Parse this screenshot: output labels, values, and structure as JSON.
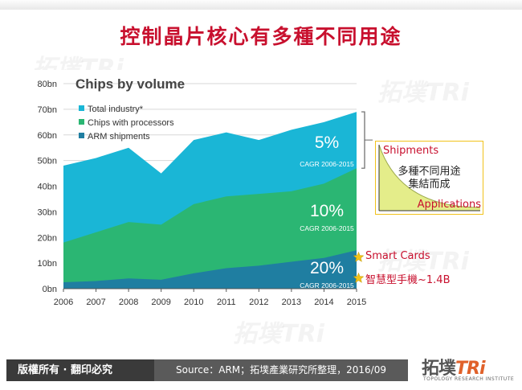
{
  "title": "控制晶片核心有多種不同用途",
  "chart_data": {
    "type": "area",
    "title": "Chips by volume",
    "x": [
      "2006",
      "2007",
      "2008",
      "2009",
      "2010",
      "2011",
      "2012",
      "2013",
      "2014",
      "2015"
    ],
    "ylim": [
      0,
      80
    ],
    "yticks": [
      "0bn",
      "10bn",
      "20bn",
      "30bn",
      "40bn",
      "50bn",
      "60bn",
      "70bn",
      "80bn"
    ],
    "grid": true,
    "legend_position": "top-left",
    "series": [
      {
        "name": "Total industry*",
        "color": "#1ab6d6",
        "values": [
          48,
          51,
          55,
          45,
          58,
          61,
          58,
          62,
          65,
          69
        ]
      },
      {
        "name": "Chips with processors",
        "color": "#2bb673",
        "values": [
          18,
          22,
          26,
          25,
          33,
          36,
          37,
          38,
          41,
          47
        ]
      },
      {
        "name": "ARM shipments",
        "color": "#1f7ea1",
        "values": [
          2.5,
          3,
          4,
          3.5,
          6,
          8,
          9,
          10.5,
          12,
          15
        ]
      }
    ],
    "annotations": [
      {
        "big": "5%",
        "small": "CAGR 2006-2015"
      },
      {
        "big": "10%",
        "small": "CAGR 2006-2015"
      },
      {
        "big": "20%",
        "small": "CAGR 2006-2015"
      }
    ]
  },
  "inset": {
    "shipments": "Shipments",
    "note_line1": "多種不同用途",
    "note_line2": "集結而成",
    "applications": "Applications"
  },
  "callouts": {
    "smart_cards": "Smart Cards",
    "smartphones": "智慧型手機~1.4B"
  },
  "footer": {
    "rights": "版權所有 · 翻印必究",
    "source": "Source：ARM；拓墣產業研究所整理，2016/09"
  },
  "logo": {
    "main": "拓墣",
    "tri": "TRi",
    "sub": "TOPOLOGY RESEARCH INSTITUTE"
  },
  "colors": {
    "title_red": "#c8102e",
    "total_industry": "#1ab6d6",
    "chips_with_processors": "#2bb673",
    "arm_shipments": "#1f7ea1",
    "star": "#f1c21b"
  }
}
